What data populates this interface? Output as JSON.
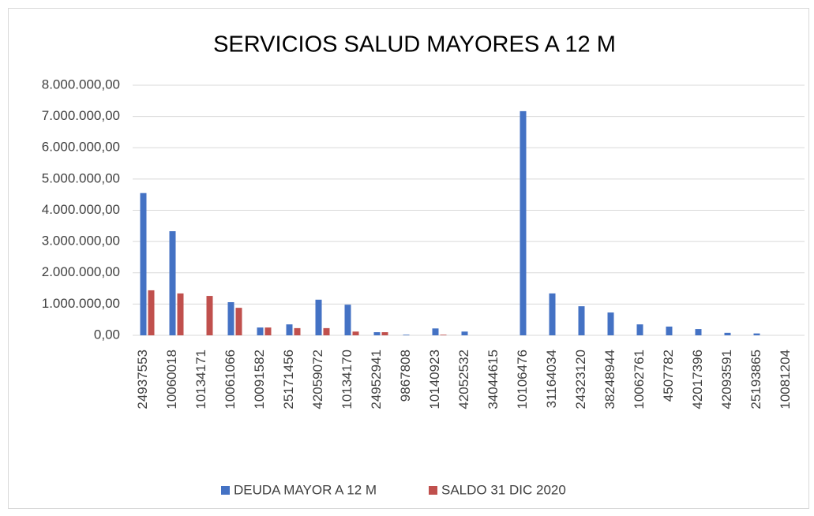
{
  "chart_data": {
    "type": "bar",
    "title": "SERVICIOS SALUD MAYORES A 12 M",
    "categories": [
      "24937553",
      "10060018",
      "10134171",
      "10061066",
      "10091582",
      "25171456",
      "42059072",
      "10134170",
      "24952941",
      "9867808",
      "10140923",
      "42052532",
      "34044615",
      "10106476",
      "31164034",
      "24323120",
      "38248944",
      "10062761",
      "4507782",
      "42017396",
      "42093591",
      "25193865",
      "10081204"
    ],
    "series": [
      {
        "name": "DEUDA MAYOR A 12 M",
        "color": "#4472c4",
        "values": [
          4550000,
          3330000,
          0,
          1060000,
          250000,
          350000,
          1140000,
          980000,
          100000,
          20000,
          220000,
          120000,
          0,
          7170000,
          1340000,
          930000,
          730000,
          350000,
          280000,
          200000,
          80000,
          60000,
          0
        ]
      },
      {
        "name": "SALDO 31 DIC 2020",
        "color": "#c0504d",
        "values": [
          1440000,
          1340000,
          1260000,
          880000,
          250000,
          230000,
          230000,
          120000,
          100000,
          0,
          20000,
          0,
          0,
          0,
          0,
          0,
          0,
          0,
          0,
          0,
          0,
          0,
          0
        ]
      }
    ],
    "ylim": [
      0,
      8000000
    ],
    "yticks": [
      {
        "value": 0,
        "label": "0,00"
      },
      {
        "value": 1000000,
        "label": "1.000.000,00"
      },
      {
        "value": 2000000,
        "label": "2.000.000,00"
      },
      {
        "value": 3000000,
        "label": "3.000.000,00"
      },
      {
        "value": 4000000,
        "label": "4.000.000,00"
      },
      {
        "value": 5000000,
        "label": "5.000.000,00"
      },
      {
        "value": 6000000,
        "label": "6.000.000,00"
      },
      {
        "value": 7000000,
        "label": "7.000.000,00"
      },
      {
        "value": 8000000,
        "label": "8.000.000,00"
      }
    ],
    "grid": true,
    "legend": "bottom"
  }
}
